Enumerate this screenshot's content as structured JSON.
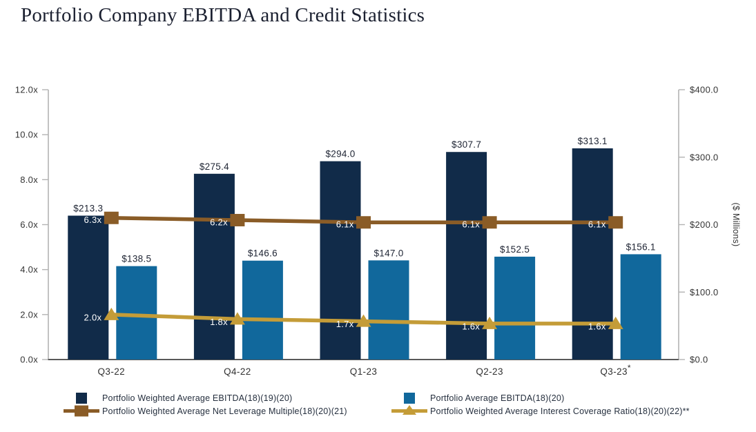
{
  "title": "Portfolio Company EBITDA and Credit Statistics",
  "colors": {
    "navy": "#112b49",
    "blue": "#11689c",
    "brown": "#8a5c27",
    "gold": "#c49c38",
    "axis_line": "#b3b3b3",
    "baseline": "#595959",
    "tick_text": "#333333",
    "bar_label_text": "#1e2433",
    "line_label_text": "#ffffff",
    "title_text": "#1b2030",
    "legend_text": "#252f3e"
  },
  "chart_data": {
    "type": "bar",
    "subtype": "dual-axis-bar-line-combo",
    "grid": false,
    "legend_position": "bottom",
    "categories": [
      "Q3-22",
      "Q4-22",
      "Q1-23",
      "Q2-23",
      "Q3-23"
    ],
    "category_suffix_superscript": [
      "",
      "",
      "",
      "",
      "*"
    ],
    "bar_series": [
      {
        "name": "Portfolio Weighted Average EBITDA(18)(19)(20)",
        "axis": "right",
        "color": "navy",
        "values": [
          213.3,
          275.4,
          294.0,
          307.7,
          313.1
        ],
        "labels": [
          "$213.3",
          "$275.4",
          "$294.0",
          "$307.7",
          "$313.1"
        ]
      },
      {
        "name": "Portfolio Average EBITDA(18)(20)",
        "axis": "right",
        "color": "blue",
        "values": [
          138.5,
          146.6,
          147.0,
          152.5,
          156.1
        ],
        "labels": [
          "$138.5",
          "$146.6",
          "$147.0",
          "$152.5",
          "$156.1"
        ]
      }
    ],
    "line_series": [
      {
        "name": "Portfolio Weighted Average Net Leverage Multiple(18)(20)(21)",
        "axis": "left",
        "color": "brown",
        "marker": "square",
        "values": [
          6.3,
          6.2,
          6.1,
          6.1,
          6.1
        ],
        "labels": [
          "6.3x",
          "6.2x",
          "6.1x",
          "6.1x",
          "6.1x"
        ]
      },
      {
        "name": "Portfolio Weighted Average Interest Coverage Ratio(18)(20)(22)**",
        "axis": "left",
        "color": "gold",
        "marker": "triangle",
        "values": [
          2.0,
          1.8,
          1.7,
          1.6,
          1.6
        ],
        "labels": [
          "2.0x",
          "1.8x",
          "1.7x",
          "1.6x",
          "1.6x"
        ]
      }
    ],
    "y_left_axis": {
      "lim": [
        0,
        12
      ],
      "ticks": [
        {
          "v": 0,
          "label": "0.0x"
        },
        {
          "v": 2,
          "label": "2.0x"
        },
        {
          "v": 4,
          "label": "4.0x"
        },
        {
          "v": 6,
          "label": "6.0x"
        },
        {
          "v": 8,
          "label": "8.0x"
        },
        {
          "v": 10,
          "label": "10.0x"
        },
        {
          "v": 12,
          "label": "12.0x"
        }
      ]
    },
    "y_right_axis": {
      "lim": [
        0,
        400
      ],
      "title": "($ Millions)",
      "ticks": [
        {
          "v": 0,
          "label": "$0.0"
        },
        {
          "v": 100,
          "label": "$100.0"
        },
        {
          "v": 200,
          "label": "$200.0"
        },
        {
          "v": 300,
          "label": "$300.0"
        },
        {
          "v": 400,
          "label": "$400.0"
        }
      ]
    }
  },
  "legend": {
    "items": [
      {
        "label": "Portfolio Weighted Average EBITDA(18)(19)(20)",
        "marker": "square",
        "color": "navy"
      },
      {
        "label": "Portfolio Weighted Average Net Leverage Multiple(18)(20)(21)",
        "marker": "line-square",
        "color": "brown"
      },
      {
        "label": "Portfolio Average EBITDA(18)(20)",
        "marker": "square",
        "color": "blue"
      },
      {
        "label": "Portfolio Weighted Average Interest Coverage Ratio(18)(20)(22)**",
        "marker": "line-triangle",
        "color": "gold"
      }
    ]
  }
}
